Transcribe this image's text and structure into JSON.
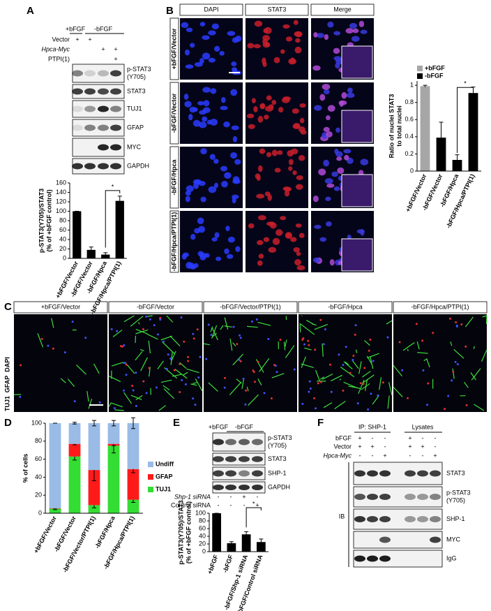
{
  "panel_labels": [
    "A",
    "B",
    "C",
    "D",
    "E",
    "F"
  ],
  "panel_a": {
    "headers": [
      "+bFGF",
      "-bFGF"
    ],
    "treatments": [
      {
        "label": "Vector",
        "signs": [
          "+",
          "+",
          null,
          null
        ]
      },
      {
        "label": "Hpca-Myc",
        "signs": [
          null,
          null,
          "+",
          "+"
        ]
      },
      {
        "label": "PTPI(1)",
        "signs": [
          null,
          null,
          null,
          "+"
        ]
      }
    ],
    "blots": [
      [
        "p-STAT3",
        "(Y705)"
      ],
      [
        "STAT3"
      ],
      [
        "TUJ1"
      ],
      [
        "GFAP"
      ],
      [
        "MYC"
      ],
      [
        "GAPDH"
      ]
    ]
  },
  "panel_b": {
    "channels": [
      "DAPI",
      "STAT3",
      "Merge"
    ],
    "conditions": [
      "+bFGF/Vector",
      "-bFGF/Vector",
      "-bFGF/Hpca",
      "-bFGF/Hpca/PTPI(1)"
    ]
  },
  "panel_c": {
    "stain": [
      "TUJ1",
      "GFAP",
      "DAPI"
    ],
    "conditions": [
      "+bFGF/Vector",
      "-bFGF/Vector",
      "-bFGF/Vector/PTPI(1)",
      "-bFGF/Hpca",
      "-bFGF/Hpca/PTPI(1)"
    ]
  },
  "panel_e": {
    "headers": [
      "+bFGF",
      "-bFGF"
    ],
    "blots": [
      [
        "p-STAT3",
        "(Y705)"
      ],
      [
        "STAT3"
      ],
      [
        "SHP-1"
      ],
      [
        "GAPDH"
      ]
    ],
    "treatments": [
      {
        "label": "Shp-1 siRNA",
        "signs": [
          "-",
          "-",
          "+",
          "-"
        ]
      },
      {
        "label": "Control siRNA",
        "signs": [
          "-",
          "-",
          "-",
          "+"
        ]
      }
    ]
  },
  "panel_f": {
    "groups": [
      "IP: SHP-1",
      "Lysates"
    ],
    "treatments": [
      {
        "label": "bFGF",
        "signs": [
          "+",
          "-",
          "-",
          "+",
          "-",
          "-"
        ]
      },
      {
        "label": "Vector",
        "signs": [
          "+",
          "+",
          "-",
          "+",
          "+",
          "-"
        ]
      },
      {
        "label": "Hpca-Myc",
        "signs": [
          "-",
          "-",
          "+",
          "-",
          "-",
          "+"
        ]
      }
    ],
    "blots": [
      [
        "STAT3"
      ],
      [
        "p-STAT3",
        "(Y705)"
      ],
      [
        "SHP-1"
      ],
      [
        "MYC"
      ],
      [
        "IgG"
      ]
    ],
    "method": "IB"
  },
  "chart_data": [
    {
      "type": "bar",
      "ylabel": [
        "p-STAT3(Y705)/STAT3",
        "(% of +bFGF control)"
      ],
      "categories": [
        "+bFGF/Vector",
        "-bFGF/Vector",
        "-bFGF/Hpca",
        "-bFGF/Hpca/PTPI(1)"
      ],
      "values": [
        100,
        18,
        8,
        122
      ],
      "errors": [
        0,
        6,
        4,
        10
      ],
      "color": "#000000",
      "ylim": [
        0,
        160
      ],
      "yticks": [
        0,
        20,
        40,
        60,
        80,
        100,
        120,
        140,
        160
      ],
      "annotations": [
        "*"
      ]
    },
    {
      "type": "bar",
      "ylabel": [
        "Ratio of nuclei STAT3",
        "to total nuclei"
      ],
      "categories": [
        "+bFGF/Vector",
        "-bFGF/Vector",
        "-bFGF/Hpca",
        "-bFGF/Hpca/PTPI(1)"
      ],
      "series": [
        {
          "name": "+bFGF",
          "color": "#a6a6a6",
          "values": [
            0.99,
            null,
            null,
            null
          ],
          "errors": [
            0.01,
            null,
            null,
            null
          ]
        },
        {
          "name": "-bFGF",
          "color": "#000000",
          "values": [
            null,
            0.39,
            0.13,
            0.91
          ],
          "errors": [
            null,
            0.18,
            0.06,
            0.07
          ]
        }
      ],
      "ylim": [
        0,
        1.05
      ],
      "yticks": [
        0,
        0.2,
        0.4,
        0.6,
        0.8,
        1
      ],
      "annotations": [
        "*"
      ],
      "legend": "top-left"
    },
    {
      "type": "stacked_bar",
      "ylabel": [
        "% of cells"
      ],
      "categories": [
        "+bFGF/Vector",
        "-bFGF/Vector",
        "-bFGF/Vector/PTPI(1)",
        "-bFGF/Hpca",
        "-bFGF/Hpca/PTPI(1)"
      ],
      "series": [
        {
          "name": "TUJ1",
          "color": "#33dd33",
          "values": [
            5,
            63,
            9,
            75,
            15
          ],
          "errors": [
            1,
            4,
            3,
            8,
            3
          ]
        },
        {
          "name": "GFAP",
          "color": "#ff1a1a",
          "values": [
            0.5,
            14,
            39,
            2,
            34
          ],
          "errors": [
            0,
            1,
            12,
            2,
            4
          ]
        },
        {
          "name": "Undiff",
          "color": "#99bbe6",
          "values": [
            94.5,
            23,
            52,
            23,
            51
          ],
          "errors": [
            0,
            1,
            3,
            3,
            6
          ]
        }
      ],
      "ylim": [
        0,
        100
      ],
      "yticks": [
        0,
        20,
        40,
        60,
        80,
        100
      ],
      "legend": "right"
    },
    {
      "type": "bar",
      "ylabel": [
        "p-STAT3(Y705)/STAT3",
        "(% of +bFGF control)"
      ],
      "categories": [
        "+bFGF",
        "-bFGF",
        "-bFGF/Shp-1 siRNA",
        "-bFGF/Control siRNA"
      ],
      "values": [
        100,
        22,
        45,
        25
      ],
      "errors": [
        0,
        4,
        7,
        8
      ],
      "color": "#000000",
      "ylim": [
        0,
        100
      ],
      "yticks": [
        0,
        20,
        40,
        60,
        80,
        100
      ],
      "annotations": [
        "*"
      ]
    }
  ]
}
